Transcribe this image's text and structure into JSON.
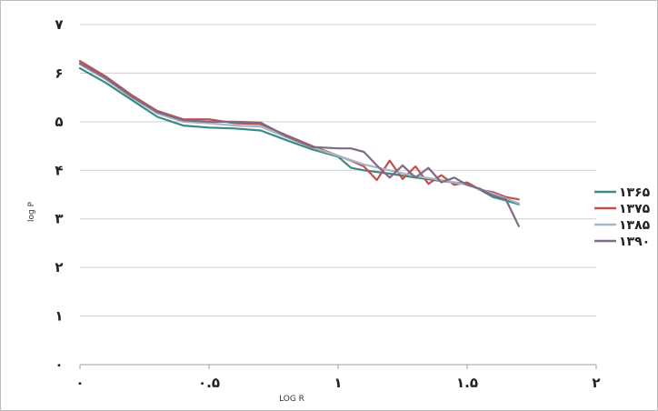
{
  "chart_data": {
    "type": "line",
    "xlabel": "LOG R",
    "ylabel": "log P",
    "xlim": [
      0,
      2
    ],
    "ylim": [
      0,
      7
    ],
    "x_ticks": [
      0,
      0.5,
      1,
      1.5,
      2
    ],
    "x_tick_labels": [
      "۰",
      "۰.۵",
      "۱",
      "۱.۵",
      "۲"
    ],
    "y_ticks": [
      0,
      1,
      2,
      3,
      4,
      5,
      6,
      7
    ],
    "y_tick_labels": [
      "۰",
      "۱",
      "۲",
      "۳",
      "۴",
      "۵",
      "۶",
      "۷"
    ],
    "grid": "horizontal",
    "legend_position": "right",
    "series": [
      {
        "name": "۱۳۶۵",
        "color": "#3d8a82",
        "x": [
          0,
          0.1,
          0.2,
          0.3,
          0.4,
          0.5,
          0.6,
          0.7,
          0.8,
          0.9,
          1.0,
          1.05,
          1.1,
          1.2,
          1.3,
          1.4,
          1.5,
          1.55,
          1.6,
          1.65,
          1.7
        ],
        "y": [
          6.1,
          5.8,
          5.45,
          5.1,
          4.92,
          4.88,
          4.86,
          4.82,
          4.62,
          4.43,
          4.28,
          4.05,
          4.0,
          3.93,
          3.85,
          3.78,
          3.72,
          3.6,
          3.45,
          3.38,
          3.3
        ]
      },
      {
        "name": "۱۳۷۵",
        "color": "#c0504d",
        "x": [
          0,
          0.1,
          0.2,
          0.3,
          0.4,
          0.5,
          0.6,
          0.7,
          0.8,
          0.9,
          1.0,
          1.05,
          1.1,
          1.15,
          1.2,
          1.25,
          1.3,
          1.35,
          1.4,
          1.45,
          1.5,
          1.55,
          1.6,
          1.65,
          1.7
        ],
        "y": [
          6.25,
          5.93,
          5.55,
          5.22,
          5.05,
          5.05,
          4.97,
          4.95,
          4.72,
          4.5,
          4.3,
          4.2,
          4.08,
          3.8,
          4.2,
          3.82,
          4.08,
          3.72,
          3.9,
          3.7,
          3.75,
          3.6,
          3.55,
          3.45,
          3.4
        ]
      },
      {
        "name": "۱۳۸۵",
        "color": "#a3b7c9",
        "x": [
          0,
          0.1,
          0.2,
          0.3,
          0.4,
          0.5,
          0.6,
          0.7,
          0.8,
          0.9,
          1.0,
          1.1,
          1.2,
          1.3,
          1.4,
          1.5,
          1.6,
          1.7
        ],
        "y": [
          6.18,
          5.87,
          5.5,
          5.17,
          5.0,
          4.97,
          4.92,
          4.9,
          4.68,
          4.47,
          4.3,
          4.12,
          4.0,
          3.88,
          3.8,
          3.7,
          3.52,
          3.32
        ]
      },
      {
        "name": "۱۳۹۰",
        "color": "#7f6a86",
        "x": [
          0,
          0.1,
          0.2,
          0.3,
          0.4,
          0.5,
          0.6,
          0.7,
          0.8,
          0.9,
          1.0,
          1.05,
          1.1,
          1.15,
          1.2,
          1.25,
          1.3,
          1.35,
          1.4,
          1.45,
          1.5,
          1.55,
          1.6,
          1.65,
          1.7
        ],
        "y": [
          6.2,
          5.9,
          5.52,
          5.2,
          5.03,
          5.0,
          5.0,
          4.98,
          4.7,
          4.48,
          4.45,
          4.45,
          4.38,
          4.1,
          3.85,
          4.1,
          3.85,
          4.05,
          3.75,
          3.85,
          3.7,
          3.62,
          3.48,
          3.4,
          2.85
        ]
      }
    ]
  }
}
